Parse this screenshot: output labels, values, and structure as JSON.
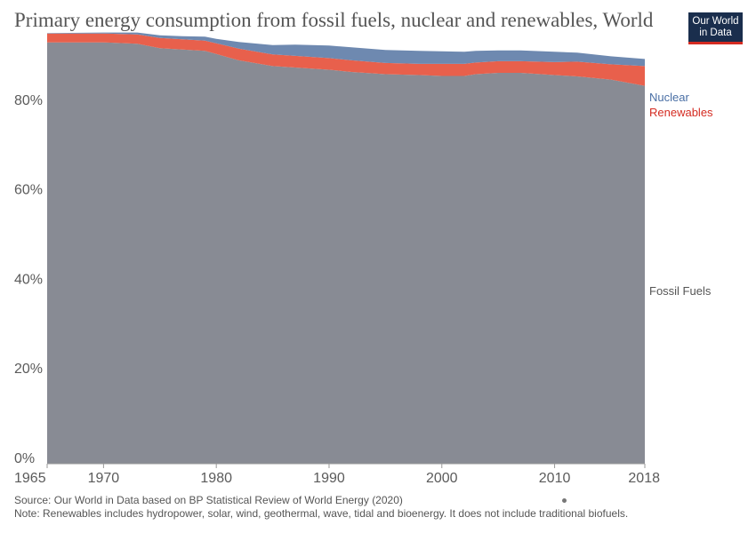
{
  "header": {
    "title": "Primary energy consumption from fossil fuels, nuclear and renewables, World",
    "logo_line1": "Our World",
    "logo_line2": "in Data"
  },
  "footer": {
    "source": "Source: Our World in Data based on BP Statistical Review of World Energy (2020)",
    "note": "Note: Renewables includes hydropower, solar, wind, geothermal, wave, tidal and bioenergy. It does not include traditional biofuels."
  },
  "chart_data": {
    "type": "area",
    "stacked": true,
    "title": "Primary energy consumption from fossil fuels, nuclear and renewables, World",
    "x_ticks": [
      1965,
      1970,
      1980,
      1990,
      2000,
      2010,
      2018
    ],
    "y_ticks": [
      0,
      20,
      40,
      60,
      80
    ],
    "y_tick_labels": [
      "0%",
      "20%",
      "40%",
      "60%",
      "80%"
    ],
    "xlim": [
      1965,
      2018
    ],
    "ylim": [
      0,
      100
    ],
    "grid": "horizontal dashed",
    "legend": "right (inline labels)",
    "x": [
      1965,
      1970,
      1973,
      1975,
      1977,
      1979,
      1980,
      1982,
      1985,
      1987,
      1990,
      1992,
      1995,
      1998,
      2000,
      2002,
      2003,
      2005,
      2007,
      2010,
      2012,
      2015,
      2018
    ],
    "series": [
      {
        "name": "Fossil Fuels",
        "color": "#888b94",
        "values": [
          94.1,
          94.1,
          93.8,
          92.8,
          92.5,
          92.2,
          91.5,
          90.1,
          88.8,
          88.5,
          88.0,
          87.5,
          87.0,
          86.8,
          86.6,
          86.6,
          87.0,
          87.3,
          87.3,
          86.8,
          86.5,
          85.8,
          84.4
        ]
      },
      {
        "name": "Renewables",
        "color": "#e8604c",
        "values": [
          2.0,
          2.0,
          2.1,
          2.3,
          2.3,
          2.3,
          2.4,
          2.6,
          2.6,
          2.6,
          2.6,
          2.6,
          2.5,
          2.5,
          2.7,
          2.7,
          2.6,
          2.6,
          2.6,
          2.9,
          3.3,
          3.4,
          4.4
        ]
      },
      {
        "name": "Nuclear",
        "color": "#6e89b0",
        "values": [
          0.1,
          0.2,
          0.4,
          0.6,
          0.7,
          0.9,
          1.0,
          1.5,
          2.1,
          2.5,
          2.8,
          2.9,
          2.9,
          2.9,
          2.8,
          2.7,
          2.6,
          2.4,
          2.4,
          2.3,
          2.0,
          1.8,
          1.6
        ]
      }
    ]
  }
}
